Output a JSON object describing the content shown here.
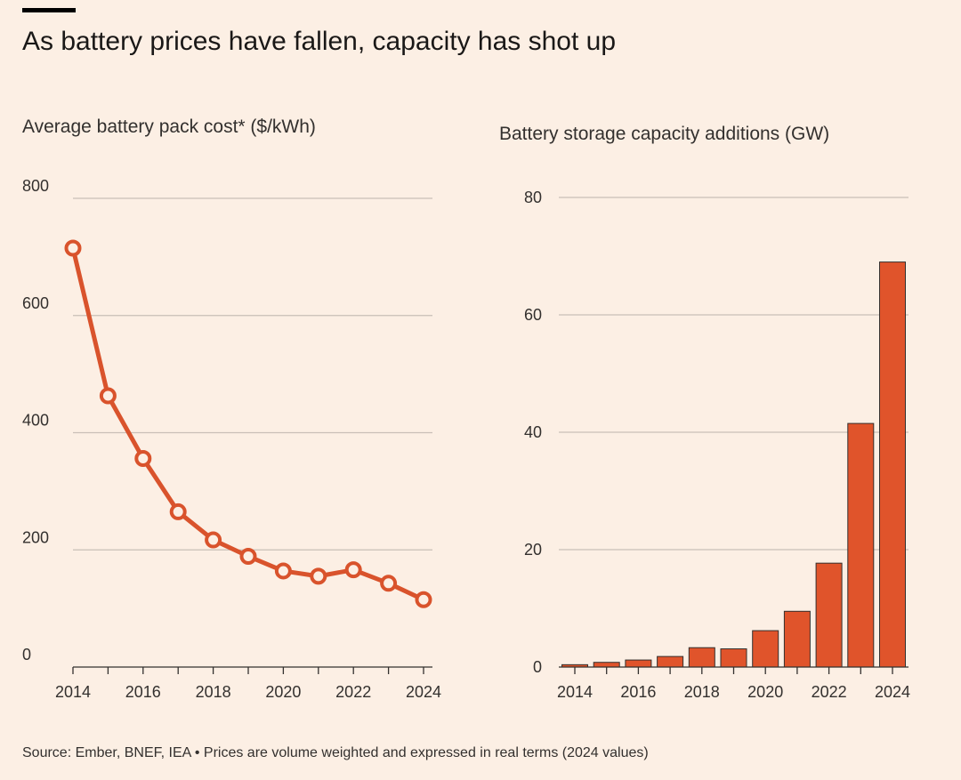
{
  "header": {
    "title": "As battery prices have fallen, capacity has shot up"
  },
  "colors": {
    "background": "#fcefe4",
    "accent": "#d9532c",
    "line": "#d9532c",
    "bar_fill": "#e0542b",
    "bar_stroke": "#33302e",
    "grid": "#c9bfb7"
  },
  "chart_data": [
    {
      "type": "line",
      "title": "Average battery pack cost* ($/kWh)",
      "xlabel": "",
      "ylabel": "",
      "ylim": [
        0,
        800
      ],
      "yticks": [
        0,
        200,
        400,
        600,
        800
      ],
      "xticks": [
        2014,
        2016,
        2018,
        2020,
        2022,
        2024
      ],
      "x": [
        2014,
        2015,
        2016,
        2017,
        2018,
        2019,
        2020,
        2021,
        2022,
        2023,
        2024
      ],
      "series": [
        {
          "values": [
            715,
            463,
            356,
            265,
            217,
            189,
            164,
            155,
            166,
            143,
            115
          ]
        }
      ],
      "grid": true,
      "markers": "hollow circles"
    },
    {
      "type": "bar",
      "title": "Battery storage capacity additions (GW)",
      "xlabel": "",
      "ylabel": "",
      "ylim": [
        0,
        80
      ],
      "yticks": [
        0,
        20,
        40,
        60,
        80
      ],
      "xticks": [
        2014,
        2016,
        2018,
        2020,
        2022,
        2024
      ],
      "categories": [
        2014,
        2015,
        2016,
        2017,
        2018,
        2019,
        2020,
        2021,
        2022,
        2023,
        2024
      ],
      "values": [
        0.4,
        0.8,
        1.2,
        1.8,
        3.3,
        3.1,
        6.2,
        9.5,
        17.7,
        41.5,
        69
      ],
      "grid": true
    }
  ],
  "footer": {
    "source": "Source: Ember, BNEF, IEA • Prices are volume weighted and expressed in real terms (2024 values)"
  }
}
